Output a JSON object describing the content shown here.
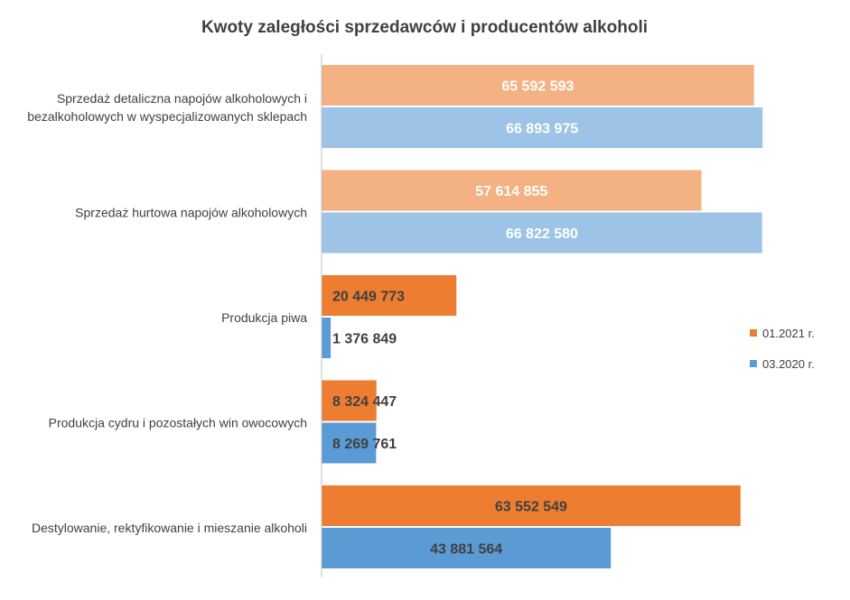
{
  "chart_data": {
    "type": "bar",
    "orientation": "horizontal",
    "title": "Kwoty zaległości sprzedawców i producentów alkoholi",
    "categories": [
      [
        "Sprzedaż detaliczna napojów alkoholowych i",
        "bezalkoholowych w wyspecjalizowanych sklepach"
      ],
      [
        "Sprzedaż hurtowa napojów alkoholowych"
      ],
      [
        "Produkcja piwa"
      ],
      [
        "Produkcja cydru i pozostałych win owocowych"
      ],
      [
        "Destylowanie, rektyfikowanie i mieszanie alkoholi"
      ]
    ],
    "series": [
      {
        "name": "01.2021 r.",
        "values": [
          65592593,
          57614855,
          20449773,
          8324447,
          63552549
        ],
        "labels": [
          "65 592 593",
          "57 614 855",
          "20 449 773",
          "8 324 447",
          "63 552 549"
        ]
      },
      {
        "name": "03.2020 r.",
        "values": [
          66893975,
          66822580,
          1376849,
          8269761,
          43881564
        ],
        "labels": [
          "66 893 975",
          "66 822 580",
          "1 376 849",
          "8 269 761",
          "43 881 564"
        ]
      }
    ],
    "highlighted_categories": [
      2,
      3,
      4
    ],
    "xlim": [
      0,
      67000000
    ],
    "grid": false,
    "legend_position": "right",
    "colors": {
      "series1": "#ED7D31",
      "series1_muted": "#F4B183",
      "series2": "#5B9BD5",
      "series2_muted": "#9DC3E6",
      "label_on_bar": "#ffffff",
      "label_dark": "#404040",
      "axis": "#BFBFBF"
    }
  }
}
